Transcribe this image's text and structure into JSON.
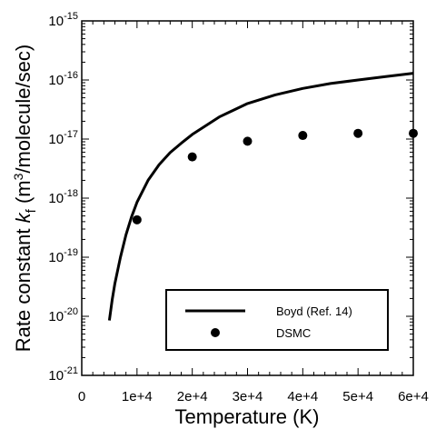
{
  "chart_data": {
    "type": "line",
    "title": "",
    "xlabel": "Temperature (K)",
    "ylabel_parts": [
      "Rate constant ",
      "k",
      "f",
      " (m",
      "3",
      "/molecule/sec)"
    ],
    "xlim": [
      0,
      60000
    ],
    "ylim": [
      1e-21,
      1e-15
    ],
    "yscale": "log",
    "grid": false,
    "legend_position": "bottom-right",
    "x_ticks": [
      {
        "value": 0,
        "label": "0"
      },
      {
        "value": 10000,
        "label": "1e+4"
      },
      {
        "value": 20000,
        "label": "2e+4"
      },
      {
        "value": 30000,
        "label": "3e+4"
      },
      {
        "value": 40000,
        "label": "4e+4"
      },
      {
        "value": 50000,
        "label": "5e+4"
      },
      {
        "value": 60000,
        "label": "6e+4"
      }
    ],
    "y_ticks": [
      {
        "exp": -21,
        "base": "10",
        "sup": "-21"
      },
      {
        "exp": -20,
        "base": "10",
        "sup": "-20"
      },
      {
        "exp": -19,
        "base": "10",
        "sup": "-19"
      },
      {
        "exp": -18,
        "base": "10",
        "sup": "-18"
      },
      {
        "exp": -17,
        "base": "10",
        "sup": "-17"
      },
      {
        "exp": -16,
        "base": "10",
        "sup": "-16"
      },
      {
        "exp": -15,
        "base": "10",
        "sup": "-15"
      }
    ],
    "series": [
      {
        "name": "Boyd (Ref. 14)",
        "style": "line",
        "color": "#000000",
        "x": [
          5000,
          5500,
          6000,
          7000,
          8000,
          9000,
          10000,
          12000,
          14000,
          16000,
          18000,
          20000,
          25000,
          30000,
          35000,
          40000,
          45000,
          50000,
          55000,
          60000
        ],
        "y": [
          8.5e-21,
          1.9e-20,
          3.6e-20,
          1e-19,
          2.4e-19,
          4.8e-19,
          8.5e-19,
          2e-18,
          3.7e-18,
          5.9e-18,
          8.5e-18,
          1.2e-17,
          2.4e-17,
          4e-17,
          5.6e-17,
          7.2e-17,
          8.7e-17,
          1e-16,
          1.14e-16,
          1.3e-16
        ]
      },
      {
        "name": "DSMC",
        "style": "scatter",
        "color": "#000000",
        "x": [
          10000,
          20000,
          30000,
          40000,
          50000,
          60000
        ],
        "y": [
          4.3e-19,
          5e-18,
          9.2e-18,
          1.15e-17,
          1.25e-17,
          1.25e-17
        ]
      }
    ]
  }
}
